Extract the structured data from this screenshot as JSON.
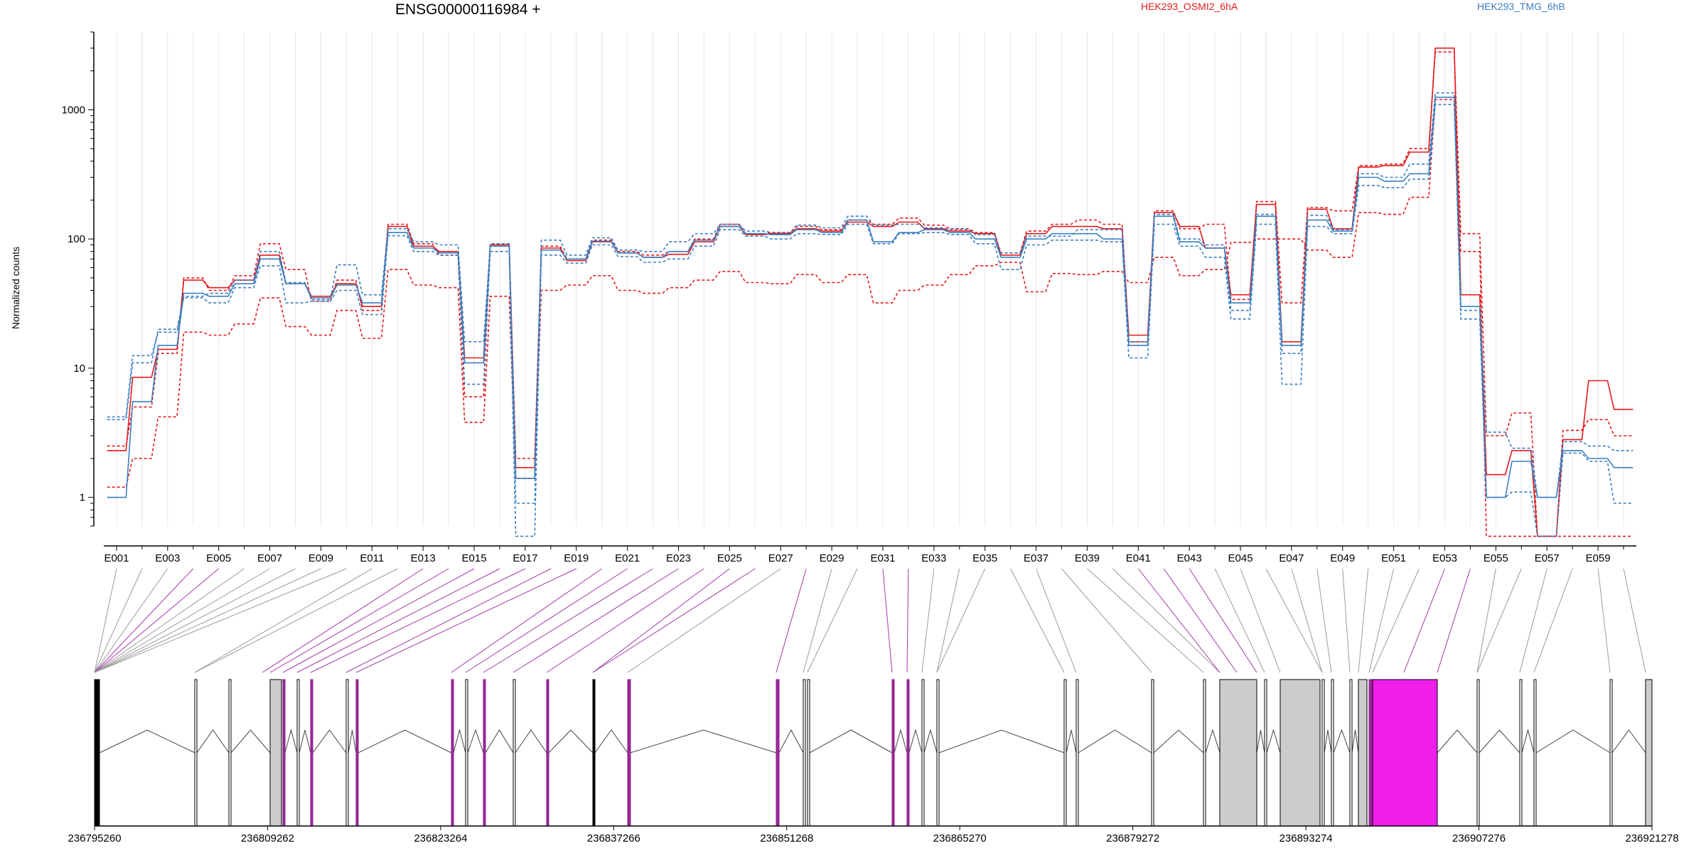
{
  "chart_data": {
    "type": "line",
    "title": "ENSG00000116984 +",
    "ylabel": "Normalized counts",
    "yscale": "log",
    "ylim": [
      0.6,
      4000
    ],
    "yticks": [
      "1",
      "10",
      "100",
      "1000"
    ],
    "legend_placement": "top",
    "categories": [
      "E001",
      "E002",
      "E003",
      "E004",
      "E005",
      "E006",
      "E007",
      "E008",
      "E009",
      "E010",
      "E011",
      "E012",
      "E013",
      "E014",
      "E015",
      "E016",
      "E017",
      "E018",
      "E019",
      "E020",
      "E021",
      "E022",
      "E023",
      "E024",
      "E025",
      "E026",
      "E027",
      "E028",
      "E029",
      "E030",
      "E031",
      "E032",
      "E033",
      "E034",
      "E035",
      "E036",
      "E037",
      "E038",
      "E039",
      "E040",
      "E041",
      "E042",
      "E043",
      "E044",
      "E045",
      "E046",
      "E047",
      "E048",
      "E049",
      "E050",
      "E051",
      "E052",
      "E053",
      "E054",
      "E055",
      "E056",
      "E057",
      "E058",
      "E059",
      "E060"
    ],
    "x_labels": [
      "E001",
      "E003",
      "E005",
      "E007",
      "E009",
      "E011",
      "E013",
      "E015",
      "E017",
      "E019",
      "E021",
      "E023",
      "E025",
      "E027",
      "E029",
      "E031",
      "E033",
      "E035",
      "E037",
      "E039",
      "E041",
      "E043",
      "E045",
      "E047",
      "E049",
      "E051",
      "E053",
      "E055",
      "E057",
      "E059"
    ],
    "series": [
      {
        "name": "HEK293_OSMI2_6hA",
        "color": "#e31a1c",
        "dashed": false,
        "values": [
          2.3,
          8.5,
          14,
          48,
          42,
          48,
          75,
          45,
          36,
          45,
          30,
          125,
          88,
          80,
          12,
          90,
          1.7,
          85,
          68,
          95,
          78,
          72,
          76,
          95,
          125,
          108,
          110,
          120,
          115,
          135,
          125,
          135,
          120,
          115,
          110,
          75,
          110,
          125,
          125,
          120,
          18,
          160,
          125,
          85,
          37,
          185,
          16,
          170,
          120,
          360,
          370,
          470,
          3000,
          37,
          1.5,
          2.3,
          0.5,
          2.8,
          8,
          4.8
        ]
      },
      {
        "name": "HEK293_OSMI2_6hA",
        "color": "#e31a1c",
        "dashed": true,
        "values": [
          2.5,
          5,
          13,
          50,
          40,
          52,
          92,
          58,
          33,
          48,
          28,
          130,
          92,
          75,
          6,
          92,
          2,
          88,
          70,
          98,
          80,
          75,
          80,
          100,
          130,
          110,
          112,
          125,
          118,
          140,
          130,
          145,
          128,
          120,
          112,
          78,
          115,
          130,
          140,
          130,
          16,
          165,
          120,
          130,
          34,
          195,
          32,
          175,
          165,
          370,
          380,
          500,
          2800,
          110,
          3,
          4.5,
          0.5,
          3.3,
          4,
          3
        ]
      },
      {
        "name": "HEK293_OSMI2_6hA",
        "color": "#e31a1c",
        "dashed": true,
        "values": [
          1.2,
          2,
          4.2,
          19,
          18,
          22,
          35,
          21,
          18,
          28,
          17,
          58,
          44,
          42,
          3.8,
          36,
          1.4,
          40,
          44,
          52,
          40,
          38,
          42,
          48,
          56,
          46,
          45,
          53,
          46,
          53,
          32,
          40,
          44,
          53,
          62,
          66,
          39,
          54,
          53,
          56,
          46,
          72,
          52,
          58,
          94,
          100,
          100,
          82,
          72,
          160,
          155,
          210,
          1200,
          80,
          0.5,
          0.5,
          0.5,
          0.5,
          0.5,
          0.5
        ]
      },
      {
        "name": "HEK293_TMG_6hB",
        "color": "#3a7fc1",
        "dashed": false,
        "values": [
          1,
          5.5,
          15,
          38,
          36,
          45,
          70,
          45,
          35,
          44,
          32,
          112,
          85,
          78,
          11,
          88,
          1.4,
          82,
          70,
          96,
          78,
          72,
          80,
          98,
          125,
          110,
          108,
          118,
          112,
          140,
          95,
          112,
          118,
          112,
          100,
          72,
          100,
          110,
          110,
          100,
          15,
          150,
          95,
          85,
          32,
          150,
          15,
          140,
          115,
          300,
          280,
          320,
          1250,
          30,
          1,
          1.9,
          1,
          2.3,
          2,
          1.7
        ]
      },
      {
        "name": "HEK293_TMG_6hB",
        "color": "#3a7fc1",
        "dashed": true,
        "values": [
          4.2,
          12.5,
          19,
          35,
          32,
          42,
          62,
          32,
          33,
          40,
          26,
          106,
          80,
          75,
          7.5,
          80,
          0.5,
          75,
          65,
          90,
          73,
          66,
          70,
          88,
          118,
          105,
          100,
          110,
          108,
          130,
          92,
          110,
          112,
          108,
          92,
          58,
          90,
          98,
          98,
          95,
          12,
          130,
          88,
          72,
          24,
          130,
          7.5,
          125,
          110,
          260,
          250,
          290,
          1100,
          24,
          1,
          1.1,
          0.5,
          2.2,
          1.9,
          0.9
        ]
      },
      {
        "name": "HEK293_TMG_6hB",
        "color": "#3a7fc1",
        "dashed": true,
        "values": [
          4,
          11,
          20,
          36,
          38,
          48,
          80,
          46,
          34,
          63,
          37,
          120,
          95,
          90,
          16,
          92,
          0.9,
          98,
          75,
          102,
          82,
          80,
          95,
          110,
          130,
          115,
          112,
          128,
          122,
          150,
          128,
          130,
          122,
          118,
          108,
          78,
          105,
          105,
          118,
          118,
          16,
          155,
          100,
          90,
          28,
          155,
          13,
          152,
          118,
          320,
          300,
          380,
          1350,
          28,
          3.2,
          2.4,
          1,
          2.7,
          2.5,
          2.3
        ]
      }
    ],
    "genome_coords": [
      "236795260",
      "236809262",
      "236823264",
      "236837266",
      "236851268",
      "236865270",
      "236879272",
      "236893274",
      "236907276",
      "236921278"
    ]
  }
}
